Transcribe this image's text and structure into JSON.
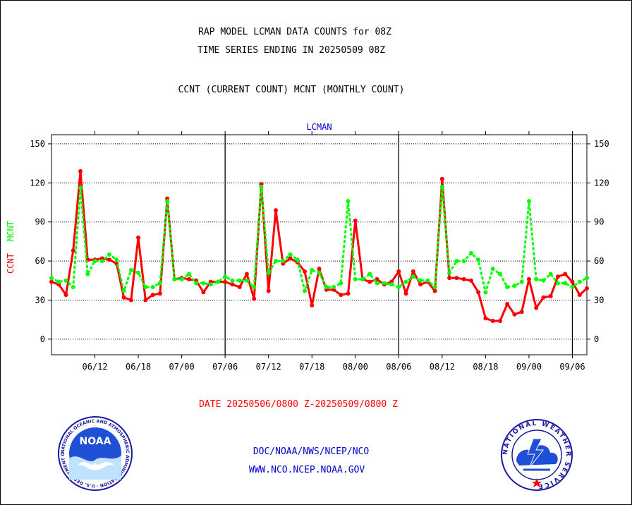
{
  "header": {
    "title1": "RAP MODEL LCMAN DATA COUNTS for 08Z",
    "title2": "TIME SERIES ENDING IN 20250509 08Z",
    "subtitle": "CCNT (CURRENT COUNT) MCNT (MONTHLY COUNT)"
  },
  "footer": {
    "date_range": "DATE 20250506/0800 Z-20250509/0800 Z",
    "org": "DOC/NOAA/NWS/NCEP/NCO",
    "url": "WWW.NCO.NCEP.NOAA.GOV"
  },
  "logos": {
    "noaa_text": "NOAA",
    "noaa_ring": "NATIONAL OCEANIC AND ATMOSPHERIC ADMINISTRATION · U.S. DEPARTMENT OF COMMERCE",
    "nws_ring": "NATIONAL WEATHER SERVICE"
  },
  "colors": {
    "ccnt": "#ff0000",
    "mcnt": "#00ff00",
    "panel_title": "#0000cc",
    "footer_blue": "#0000cc",
    "footer_red": "#ff0000"
  },
  "chart_data": {
    "type": "line",
    "title": "LCMAN",
    "ylabel_left": [
      "CCNT",
      "MCNT"
    ],
    "ylim": [
      -12,
      157
    ],
    "yticks": [
      0,
      30,
      60,
      90,
      120,
      150
    ],
    "x_tick_labels": [
      "06/12",
      "06/18",
      "07/00",
      "07/06",
      "07/12",
      "07/18",
      "08/00",
      "08/06",
      "08/12",
      "08/18",
      "09/00",
      "09/06"
    ],
    "x_tick_positions": [
      6,
      12,
      18,
      24,
      30,
      36,
      42,
      48,
      54,
      60,
      66,
      72
    ],
    "xlim": [
      0,
      74
    ],
    "day_boundaries": [
      24,
      48,
      72
    ],
    "grid": true,
    "series": [
      {
        "name": "CCNT",
        "values": [
          44,
          42,
          34,
          68,
          129,
          61,
          61,
          62,
          61,
          58,
          32,
          30,
          78,
          30,
          34,
          35,
          108,
          46,
          47,
          46,
          45,
          36,
          44,
          44,
          44,
          42,
          40,
          50,
          31,
          119,
          37,
          99,
          58,
          62,
          59,
          52,
          26,
          54,
          38,
          38,
          34,
          35,
          91,
          46,
          44,
          46,
          42,
          44,
          52,
          35,
          52,
          42,
          44,
          37,
          123,
          47,
          47,
          46,
          45,
          36,
          16,
          14,
          14,
          27,
          19,
          21,
          46,
          24,
          32,
          33,
          48,
          50,
          44,
          34,
          39
        ],
        "color": "#ff0000"
      },
      {
        "name": "MCNT",
        "values": [
          47,
          44,
          45,
          40,
          116,
          50,
          60,
          60,
          65,
          61,
          37,
          53,
          51,
          40,
          40,
          43,
          106,
          46,
          46,
          50,
          43,
          43,
          42,
          44,
          48,
          45,
          45,
          45,
          40,
          117,
          51,
          60,
          60,
          65,
          61,
          37,
          53,
          51,
          40,
          40,
          43,
          106,
          46,
          46,
          50,
          43,
          43,
          42,
          40,
          44,
          48,
          45,
          45,
          40,
          117,
          51,
          60,
          60,
          66,
          61,
          36,
          54,
          50,
          40,
          41,
          44,
          106,
          46,
          45,
          50,
          43,
          43,
          40,
          44,
          47
        ],
        "color": "#00ff00"
      }
    ]
  }
}
